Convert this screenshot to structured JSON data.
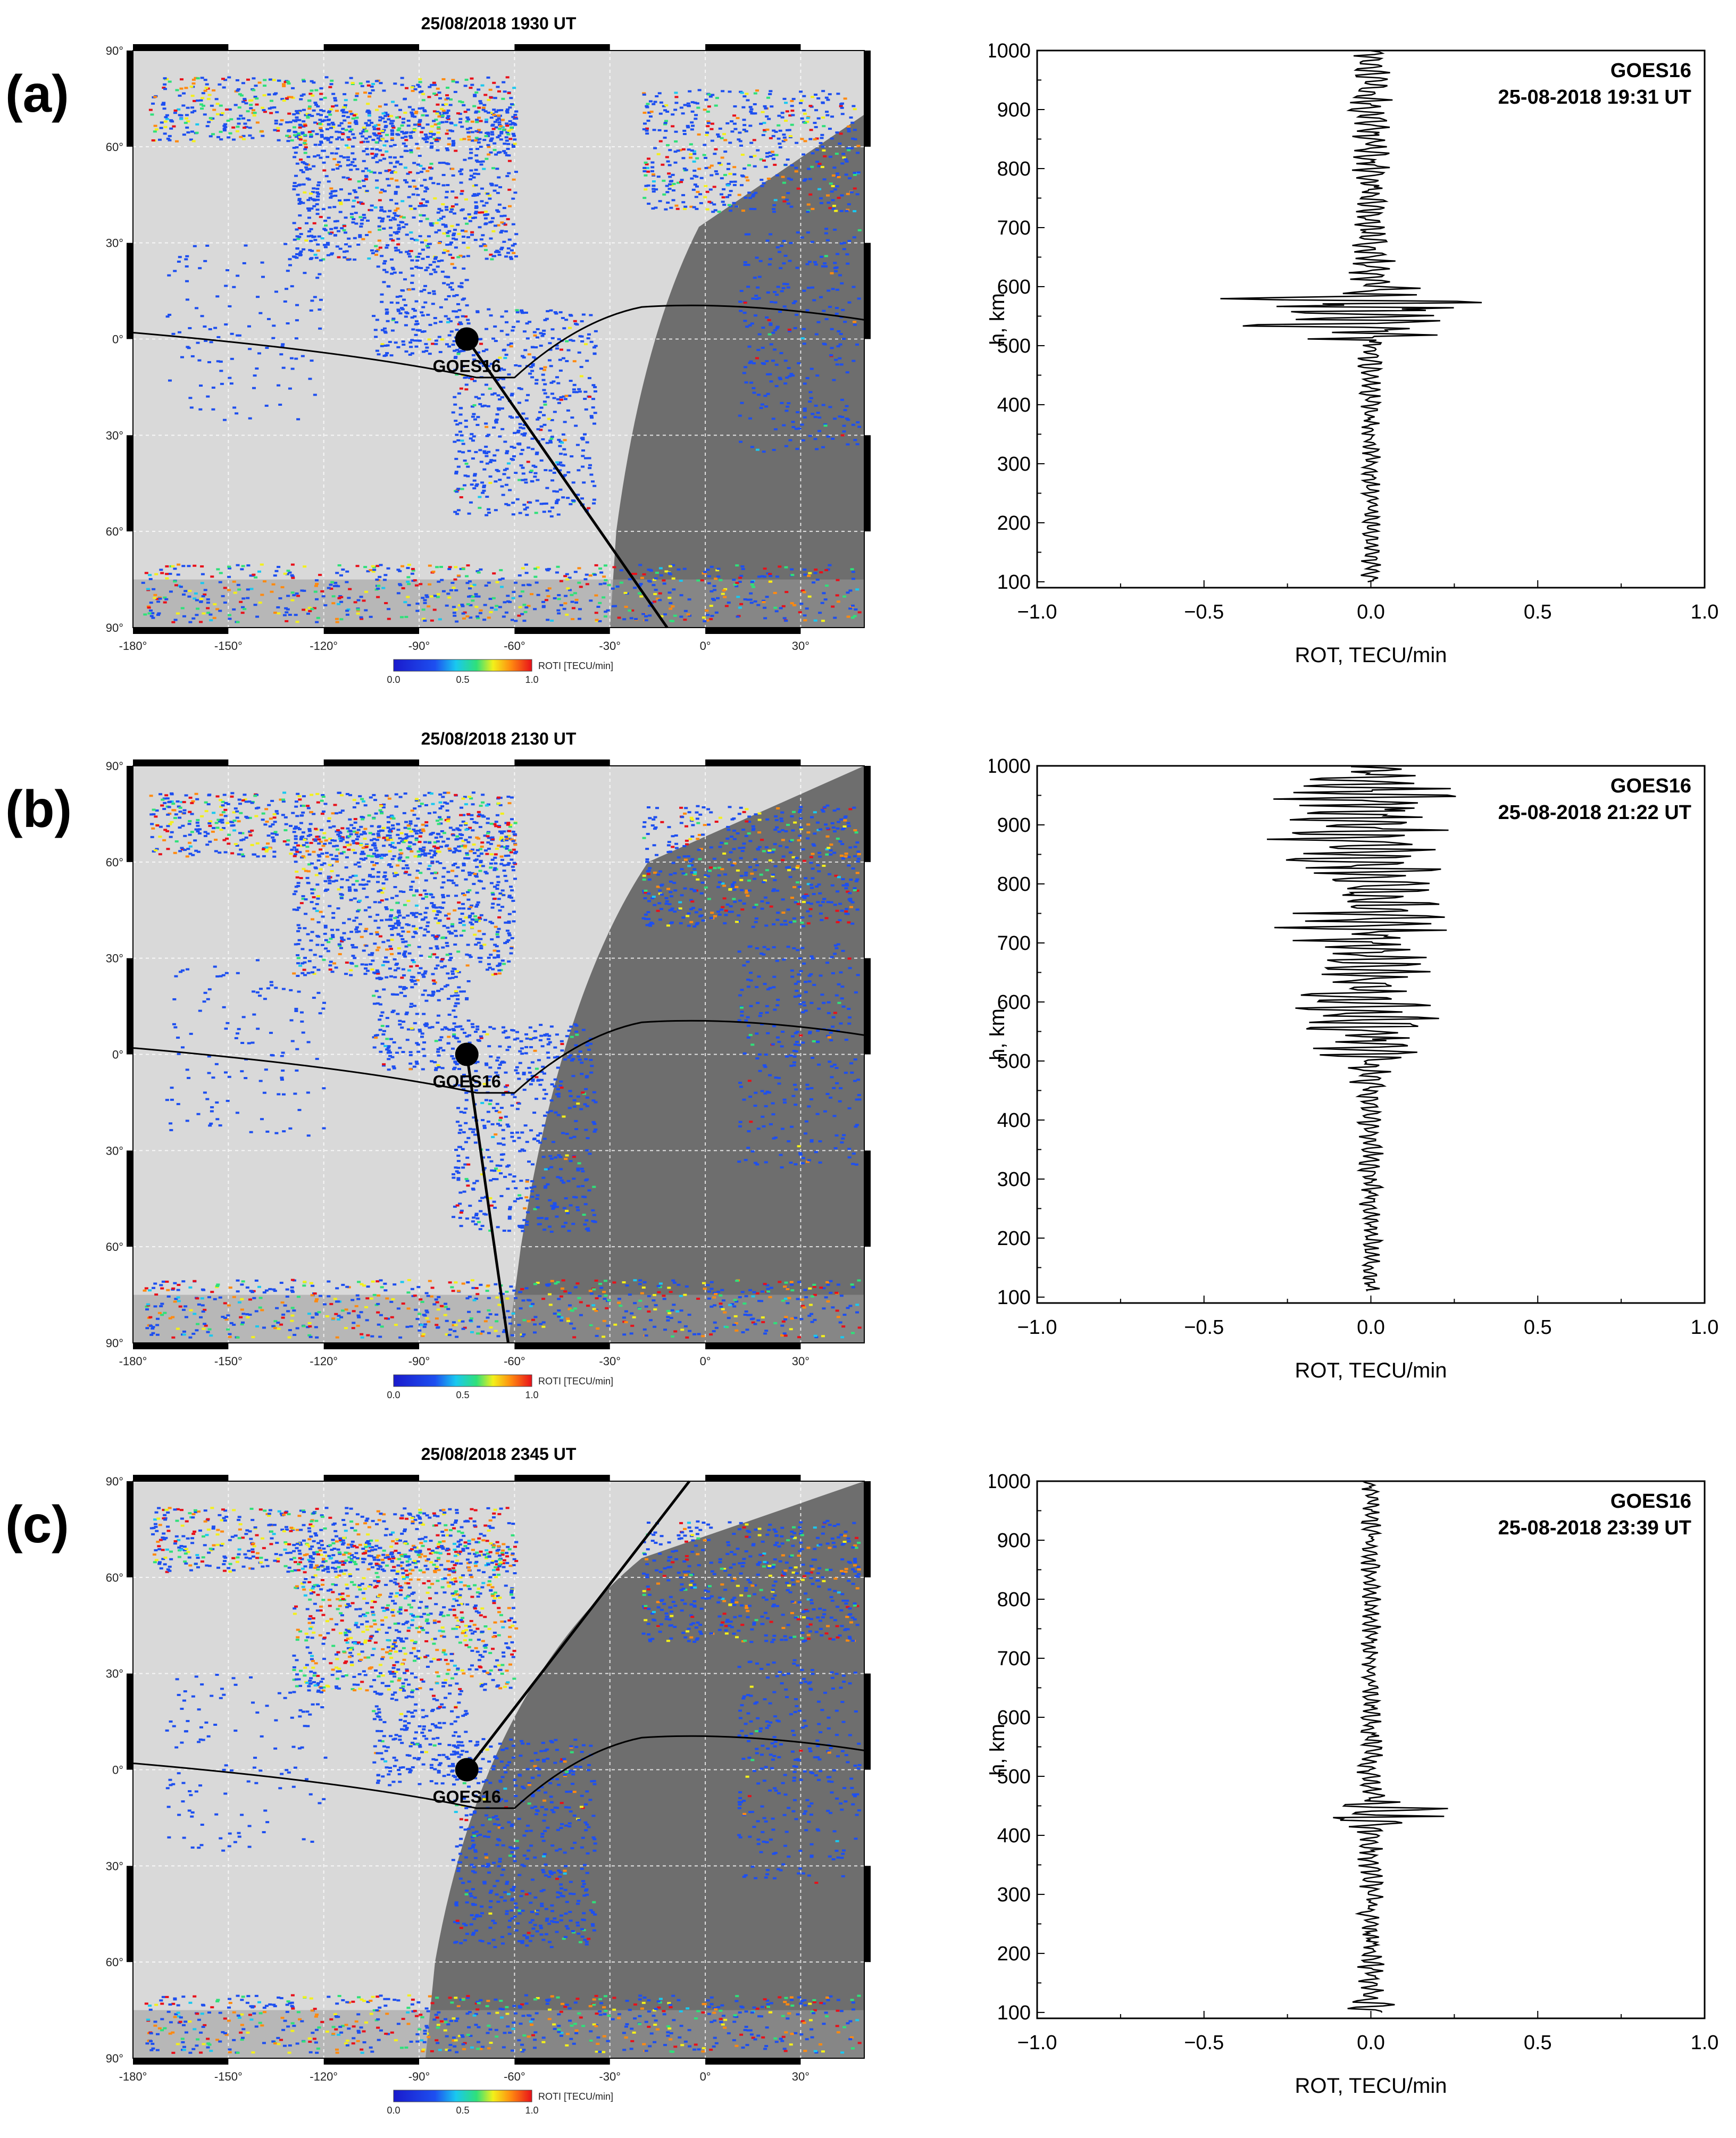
{
  "figure": {
    "panels": [
      {
        "letter": "(a)",
        "map": {
          "title": "25/08/2018    1930 UT",
          "satellite_label": "GOES16",
          "colorbar_label": "ROTI [TECU/min]",
          "colorbar_ticks": [
            "0.0",
            "0.5",
            "1.0"
          ],
          "lon_ticks": [
            "-180",
            "-150",
            "-120",
            "-90",
            "-60",
            "-30",
            "0",
            "30"
          ],
          "lat_ticks": [
            "90",
            "60",
            "30",
            "0",
            "-30",
            "-60",
            "-90"
          ],
          "satellite_subpoint": [
            -75,
            0
          ]
        },
        "profile": {
          "satellite": "GOES16",
          "timestamp": "25-08-2018 19:31 UT"
        }
      },
      {
        "letter": "(b)",
        "map": {
          "title": "25/08/2018    2130 UT",
          "satellite_label": "GOES16",
          "colorbar_label": "ROTI [TECU/min]",
          "colorbar_ticks": [
            "0.0",
            "0.5",
            "1.0"
          ],
          "lon_ticks": [
            "-180",
            "-150",
            "-120",
            "-90",
            "-60",
            "-30",
            "0",
            "30"
          ],
          "lat_ticks": [
            "90",
            "60",
            "30",
            "0",
            "-30",
            "-60",
            "-90"
          ],
          "satellite_subpoint": [
            -75,
            0
          ]
        },
        "profile": {
          "satellite": "GOES16",
          "timestamp": "25-08-2018 21:22 UT"
        }
      },
      {
        "letter": "(c)",
        "map": {
          "title": "25/08/2018    2345 UT",
          "satellite_label": "GOES16",
          "colorbar_label": "ROTI [TECU/min]",
          "colorbar_ticks": [
            "0.0",
            "0.5",
            "1.0"
          ],
          "lon_ticks": [
            "-180",
            "-150",
            "-120",
            "-90",
            "-60",
            "-30",
            "0",
            "30"
          ],
          "lat_ticks": [
            "90",
            "60",
            "30",
            "0",
            "-30",
            "-60",
            "-90"
          ],
          "satellite_subpoint": [
            -75,
            0
          ]
        },
        "profile": {
          "satellite": "GOES16",
          "timestamp": "25-08-2018 23:39 UT"
        }
      }
    ]
  },
  "chart_data": [
    {
      "type": "heatmap",
      "title": "25/08/2018    1930 UT",
      "colorbar_label": "ROTI [TECU/min]",
      "colorbar_range": [
        0.0,
        1.0
      ],
      "xlim": [
        -180,
        50
      ],
      "ylim": [
        -90,
        90
      ],
      "annotation": "GOES16"
    },
    {
      "type": "line",
      "xlabel": "ROT, TECU/min",
      "ylabel": "h, km",
      "xlim": [
        -1.0,
        1.0
      ],
      "ylim": [
        100,
        1000
      ],
      "xticks": [
        "−1.0",
        "−0.5",
        "0.0",
        "0.5",
        "1.0"
      ],
      "yticks": [
        "100",
        "200",
        "300",
        "400",
        "500",
        "600",
        "700",
        "800",
        "900",
        "1000"
      ],
      "annotations": [
        "GOES16",
        "25-08-2018 19:31 UT"
      ],
      "series": [
        {
          "envelope": [
            [
              100,
              0.03
            ],
            [
              400,
              0.03
            ],
            [
              500,
              0.05
            ],
            [
              520,
              0.3
            ],
            [
              540,
              0.45
            ],
            [
              560,
              0.5
            ],
            [
              580,
              0.45
            ],
            [
              600,
              0.1
            ],
            [
              700,
              0.05
            ],
            [
              850,
              0.06
            ],
            [
              900,
              0.07
            ],
            [
              1000,
              0.05
            ]
          ],
          "center": [
            [
              100,
              0.0
            ],
            [
              1000,
              0.0
            ]
          ]
        }
      ]
    },
    {
      "type": "heatmap",
      "title": "25/08/2018    2130 UT",
      "colorbar_label": "ROTI [TECU/min]",
      "colorbar_range": [
        0.0,
        1.0
      ],
      "xlim": [
        -180,
        50
      ],
      "ylim": [
        -90,
        90
      ],
      "annotation": "GOES16"
    },
    {
      "type": "line",
      "xlabel": "ROT, TECU/min",
      "ylabel": "h, km",
      "xlim": [
        -1.0,
        1.0
      ],
      "ylim": [
        100,
        1000
      ],
      "xticks": [
        "−1.0",
        "−0.5",
        "0.0",
        "0.5",
        "1.0"
      ],
      "yticks": [
        "100",
        "200",
        "300",
        "400",
        "500",
        "600",
        "700",
        "800",
        "900",
        "1000"
      ],
      "annotations": [
        "GOES16",
        "25-08-2018 21:22 UT"
      ],
      "series": [
        {
          "envelope": [
            [
              110,
              0.03
            ],
            [
              400,
              0.04
            ],
            [
              460,
              0.06
            ],
            [
              500,
              0.15
            ],
            [
              540,
              0.2
            ],
            [
              580,
              0.25
            ],
            [
              640,
              0.2
            ],
            [
              740,
              0.3
            ],
            [
              800,
              0.18
            ],
            [
              850,
              0.35
            ],
            [
              900,
              0.25
            ],
            [
              960,
              0.3
            ],
            [
              1000,
              0.1
            ]
          ],
          "center": [
            [
              110,
              0.0
            ],
            [
              500,
              0.0
            ],
            [
              600,
              -0.02
            ],
            [
              750,
              0.0
            ],
            [
              900,
              -0.02
            ],
            [
              1000,
              0.0
            ]
          ]
        }
      ]
    },
    {
      "type": "heatmap",
      "title": "25/08/2018    2345 UT",
      "colorbar_label": "ROTI [TECU/min]",
      "colorbar_range": [
        0.0,
        1.0
      ],
      "xlim": [
        -180,
        50
      ],
      "ylim": [
        -90,
        90
      ],
      "annotation": "GOES16"
    },
    {
      "type": "line",
      "xlabel": "ROT, TECU/min",
      "ylabel": "h, km",
      "xlim": [
        -1.0,
        1.0
      ],
      "ylim": [
        100,
        1000
      ],
      "xticks": [
        "−1.0",
        "−0.5",
        "0.0",
        "0.5",
        "1.0"
      ],
      "yticks": [
        "100",
        "200",
        "300",
        "400",
        "500",
        "600",
        "700",
        "800",
        "900",
        "1000"
      ],
      "annotations": [
        "GOES16",
        "25-08-2018 23:39 UT"
      ],
      "series": [
        {
          "envelope": [
            [
              100,
              0.08
            ],
            [
              150,
              0.05
            ],
            [
              200,
              0.04
            ],
            [
              400,
              0.04
            ],
            [
              420,
              0.1
            ],
            [
              440,
              0.32
            ],
            [
              460,
              0.05
            ],
            [
              600,
              0.03
            ],
            [
              800,
              0.03
            ],
            [
              1000,
              0.03
            ]
          ],
          "center": [
            [
              100,
              0.0
            ],
            [
              1000,
              0.0
            ]
          ]
        }
      ]
    }
  ]
}
